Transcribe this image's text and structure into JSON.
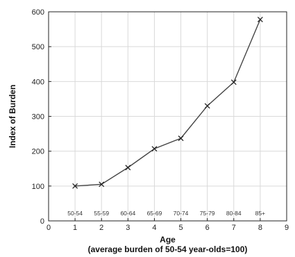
{
  "chart_data": {
    "type": "line",
    "xlabel": "Age",
    "xlabel_sub": "(average burden of 50-54 year-olds=100)",
    "ylabel": "Index of Burden",
    "xlim": [
      0,
      9
    ],
    "ylim": [
      0,
      600
    ],
    "xticks": [
      "0",
      "1",
      "2",
      "3",
      "4",
      "5",
      "6",
      "7",
      "8",
      "9"
    ],
    "yticks": [
      "0",
      "100",
      "200",
      "300",
      "400",
      "500",
      "600"
    ],
    "grid": true,
    "marker": "x",
    "line_color": "#444444",
    "age_groups": [
      "50-54",
      "55-59",
      "60-64",
      "65-69",
      "70-74",
      "75-79",
      "80-84",
      "85+"
    ],
    "x": [
      1,
      2,
      3,
      4,
      5,
      6,
      7,
      8
    ],
    "values": [
      100,
      105,
      153,
      207,
      237,
      330,
      398,
      578
    ]
  }
}
